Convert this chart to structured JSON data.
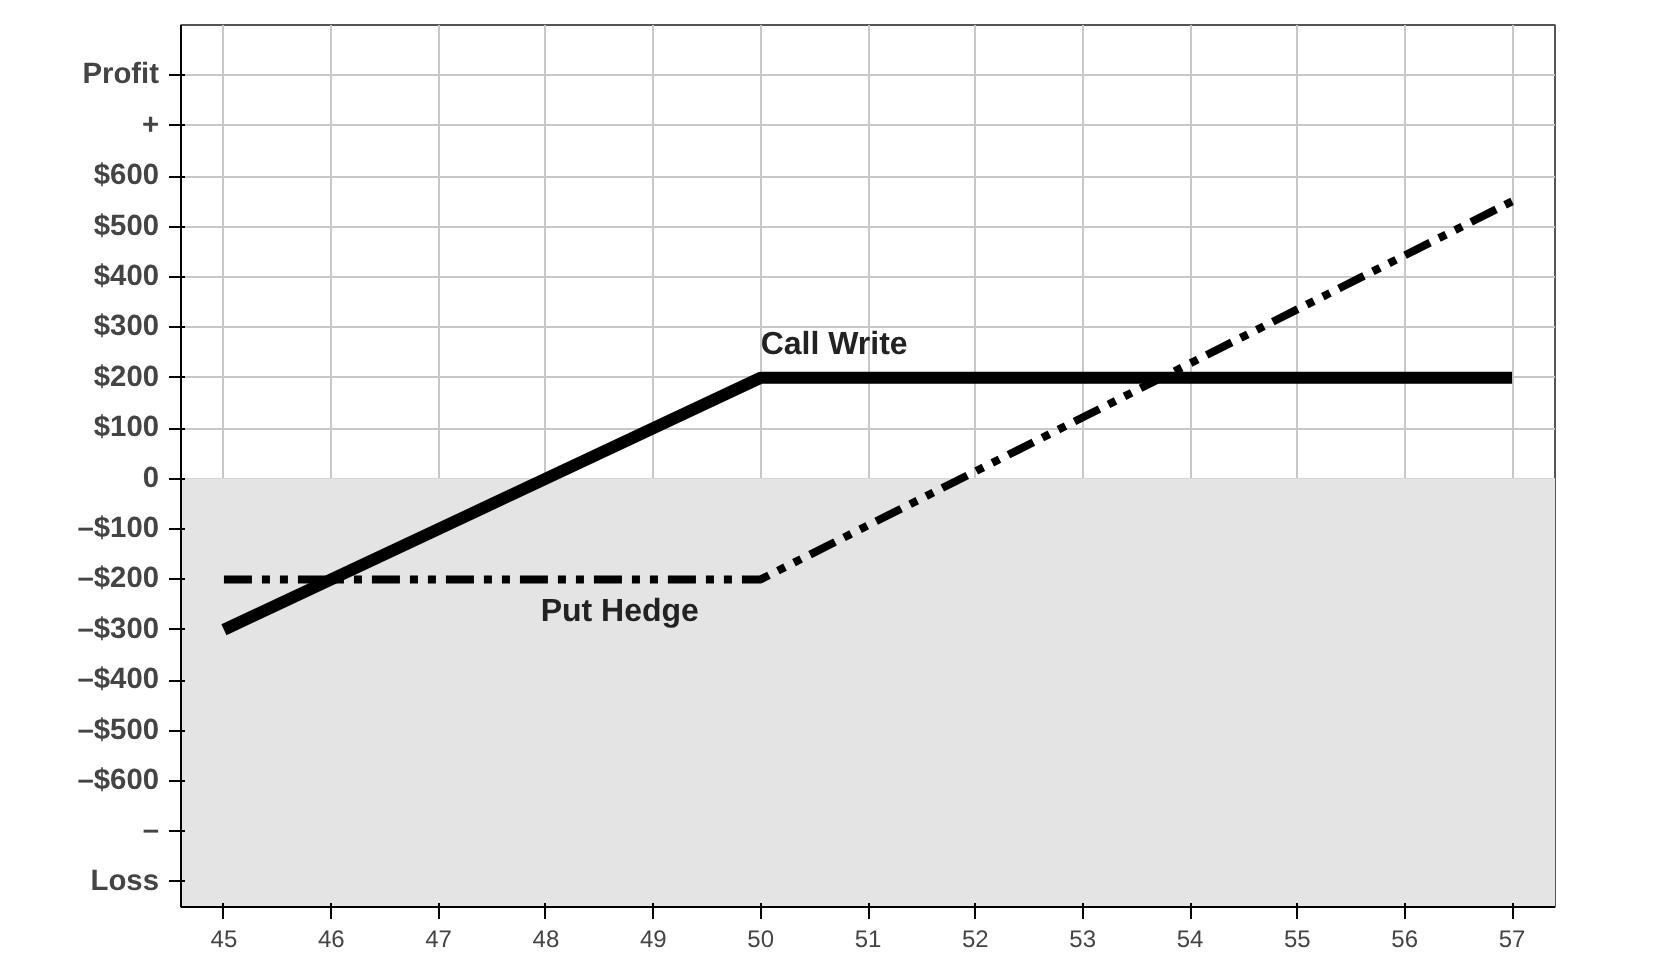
{
  "chart_data": {
    "type": "line",
    "x": [
      45,
      50,
      57
    ],
    "series": [
      {
        "name": "Call Write",
        "color": "#000000",
        "values": [
          -300,
          200,
          200
        ],
        "line_style": "solid"
      },
      {
        "name": "Put Hedge",
        "color": "#000000",
        "values": [
          -200,
          -200,
          550
        ],
        "line_style": "dashed"
      }
    ],
    "xlim": [
      44.6,
      57.4
    ],
    "ylim": [
      -850,
      900
    ],
    "xticks": [
      45,
      46,
      47,
      48,
      49,
      50,
      51,
      52,
      53,
      54,
      55,
      56,
      57
    ],
    "yticks": [
      {
        "value": 800,
        "label": "Profit"
      },
      {
        "value": 700,
        "label": "+"
      },
      {
        "value": 600,
        "label": "$600"
      },
      {
        "value": 500,
        "label": "$500"
      },
      {
        "value": 400,
        "label": "$400"
      },
      {
        "value": 300,
        "label": "$300"
      },
      {
        "value": 200,
        "label": "$200"
      },
      {
        "value": 100,
        "label": "$100"
      },
      0,
      {
        "value": -100,
        "label": "–$100"
      },
      {
        "value": -200,
        "label": "–$200"
      },
      {
        "value": -300,
        "label": "–$300"
      },
      {
        "value": -400,
        "label": "–$400"
      },
      {
        "value": -500,
        "label": "–$500"
      },
      {
        "value": -600,
        "label": "–$600"
      },
      {
        "value": -700,
        "label": "–"
      },
      {
        "value": -800,
        "label": "Loss"
      }
    ],
    "bands": [
      {
        "axis": "y",
        "from": -850,
        "to": 0,
        "color": "#e4e4e4"
      }
    ],
    "grid": true,
    "legend": false,
    "marker": "none"
  }
}
